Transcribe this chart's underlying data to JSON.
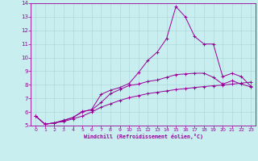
{
  "xlabel": "Windchill (Refroidissement éolien,°C)",
  "bg_color": "#c8eef0",
  "line_color": "#990099",
  "grid_color": "#aad4d8",
  "xlim": [
    -0.5,
    23.5
  ],
  "ylim": [
    5,
    14
  ],
  "yticks": [
    5,
    6,
    7,
    8,
    9,
    10,
    11,
    12,
    13,
    14
  ],
  "xticks": [
    0,
    1,
    2,
    3,
    4,
    5,
    6,
    7,
    8,
    9,
    10,
    11,
    12,
    13,
    14,
    15,
    16,
    17,
    18,
    19,
    20,
    21,
    22,
    23
  ],
  "line1_x": [
    0,
    1,
    2,
    3,
    4,
    5,
    6,
    7,
    8,
    9,
    10,
    11,
    12,
    13,
    14,
    15,
    16,
    17,
    18,
    19,
    20,
    21,
    22,
    23
  ],
  "line1_y": [
    5.7,
    5.1,
    5.2,
    5.3,
    5.5,
    5.7,
    6.0,
    6.35,
    6.6,
    6.85,
    7.05,
    7.2,
    7.35,
    7.45,
    7.55,
    7.65,
    7.72,
    7.8,
    7.87,
    7.93,
    7.98,
    8.05,
    8.12,
    8.2
  ],
  "line2_x": [
    0,
    1,
    2,
    3,
    4,
    5,
    6,
    7,
    8,
    9,
    10,
    11,
    12,
    13,
    14,
    15,
    16,
    17,
    18,
    19,
    20,
    21,
    22,
    23
  ],
  "line2_y": [
    5.7,
    5.1,
    5.2,
    5.4,
    5.6,
    6.0,
    6.2,
    7.3,
    7.6,
    7.8,
    8.1,
    8.9,
    9.8,
    10.4,
    11.4,
    13.75,
    13.0,
    11.55,
    11.0,
    11.0,
    8.6,
    8.85,
    8.6,
    7.9
  ],
  "line3_x": [
    0,
    1,
    2,
    3,
    4,
    5,
    6,
    7,
    8,
    9,
    10,
    11,
    12,
    13,
    14,
    15,
    16,
    17,
    18,
    19,
    20,
    21,
    22,
    23
  ],
  "line3_y": [
    5.7,
    5.1,
    5.2,
    5.35,
    5.6,
    6.05,
    6.15,
    6.7,
    7.35,
    7.65,
    7.95,
    8.05,
    8.25,
    8.35,
    8.55,
    8.75,
    8.8,
    8.85,
    8.85,
    8.55,
    8.05,
    8.3,
    8.05,
    7.85
  ]
}
